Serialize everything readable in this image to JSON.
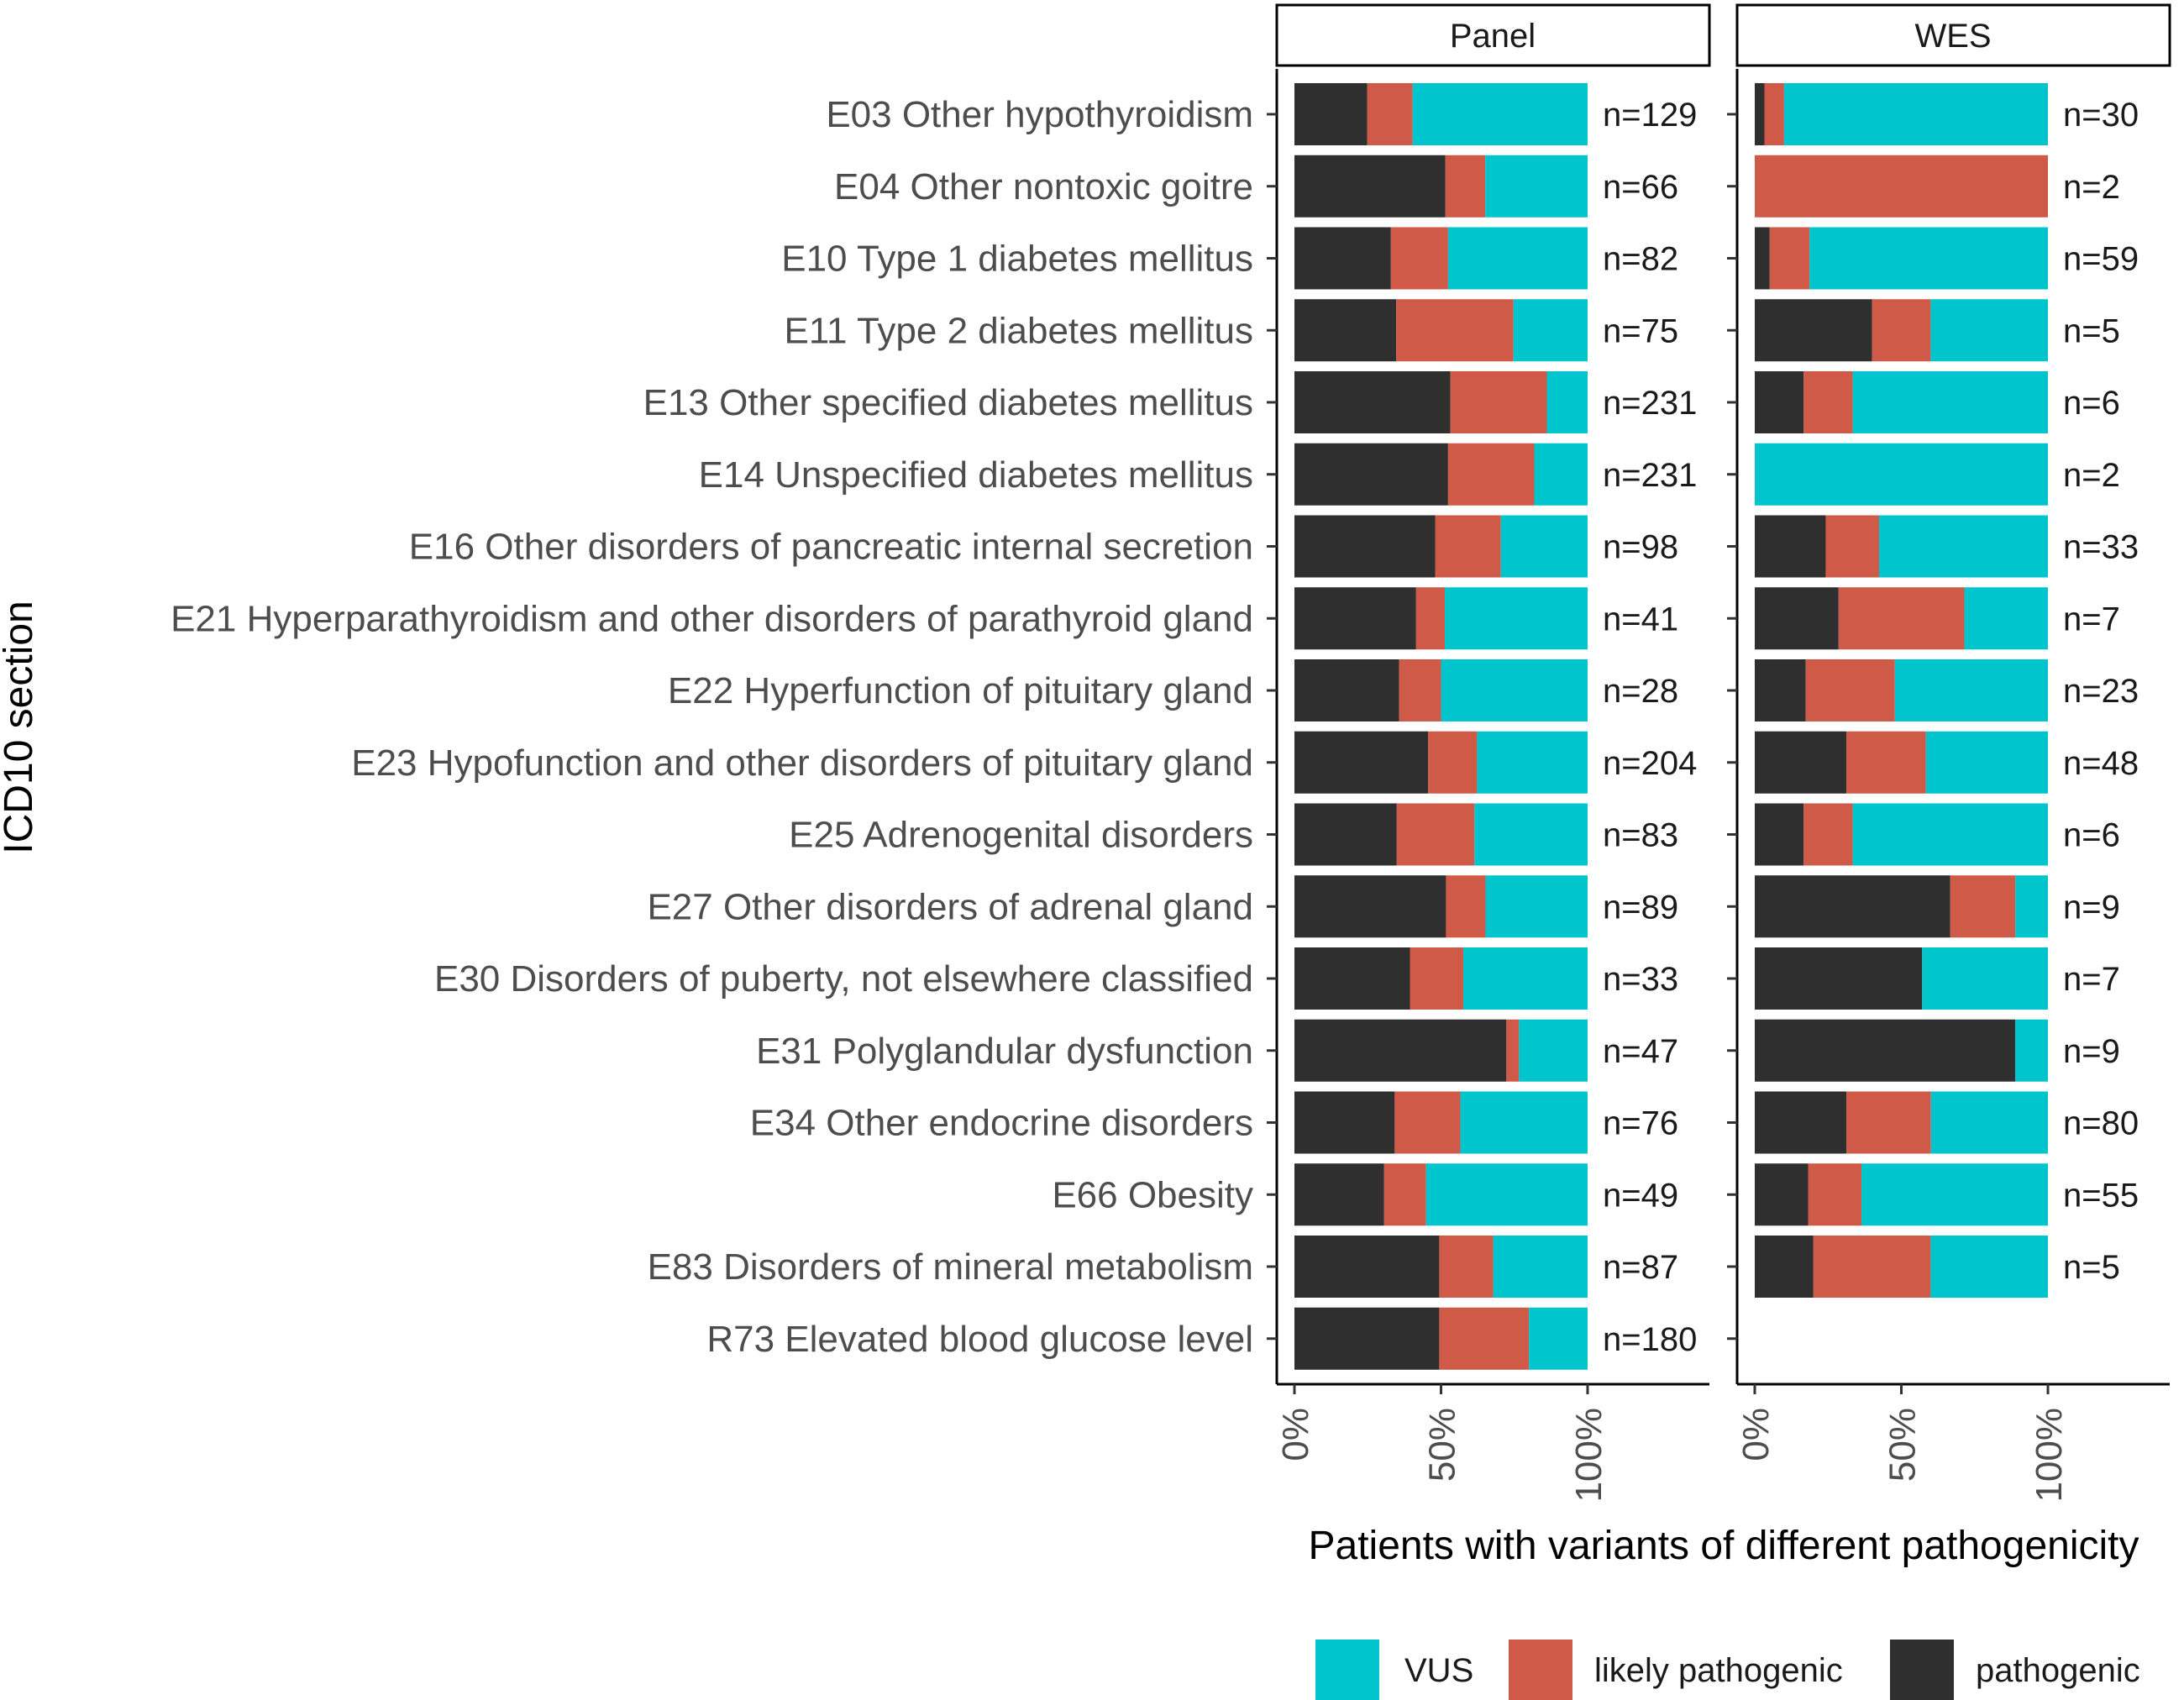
{
  "chart_data": {
    "type": "bar",
    "orientation": "horizontal",
    "stacked": "percent",
    "ylabel": "ICD10 section",
    "xlabel": "Patients with variants of different pathogenicity",
    "x_ticks": [
      "0%",
      "50%",
      "100%"
    ],
    "xlim": [
      0,
      100
    ],
    "facets": [
      "Panel",
      "WES"
    ],
    "categories": [
      "E03 Other hypothyroidism",
      "E04 Other nontoxic goitre",
      "E10 Type 1 diabetes mellitus",
      "E11 Type 2 diabetes mellitus",
      "E13 Other specified diabetes mellitus",
      "E14 Unspecified diabetes mellitus",
      "E16 Other disorders of pancreatic internal secretion",
      "E21 Hyperparathyroidism and other disorders of parathyroid gland",
      "E22 Hyperfunction of pituitary gland",
      "E23 Hypofunction and other disorders of pituitary gland",
      "E25 Adrenogenital disorders",
      "E27 Other disorders of adrenal gland",
      "E30 Disorders of puberty, not elsewhere classified",
      "E31 Polyglandular dysfunction",
      "E34 Other endocrine disorders",
      "E66 Obesity",
      "E83 Disorders of mineral metabolism",
      "R73 Elevated blood glucose level"
    ],
    "legend": {
      "position": "bottom-right",
      "entries": [
        {
          "key": "vus",
          "label": "VUS",
          "color": "#00C5CD"
        },
        {
          "key": "likely",
          "label": "likely pathogenic",
          "color": "#D05A48"
        },
        {
          "key": "pathogenic",
          "label": "pathogenic",
          "color": "#2F2F2F"
        }
      ]
    },
    "stack_order": [
      "pathogenic",
      "likely",
      "vus"
    ],
    "panels": [
      {
        "name": "Panel",
        "series": {
          "pathogenic": [
            24.8,
            51.5,
            32.9,
            34.7,
            53.2,
            52.4,
            48.0,
            41.5,
            35.7,
            45.6,
            34.9,
            51.7,
            39.4,
            72.3,
            34.2,
            30.6,
            49.4,
            49.4
          ],
          "likely": [
            15.5,
            13.6,
            19.5,
            40.0,
            32.9,
            29.4,
            22.4,
            9.8,
            14.3,
            16.7,
            26.5,
            13.5,
            18.2,
            4.3,
            22.4,
            14.3,
            18.4,
            30.6
          ],
          "vus": [
            59.7,
            34.9,
            47.6,
            25.3,
            13.9,
            18.2,
            29.6,
            48.7,
            50.0,
            37.7,
            38.6,
            34.8,
            42.4,
            23.4,
            43.4,
            55.1,
            32.2,
            20.0
          ]
        },
        "n_labels": [
          "n=129",
          "n=66",
          "n=82",
          "n=75",
          "n=231",
          "n=231",
          "n=98",
          "n=41",
          "n=28",
          "n=204",
          "n=83",
          "n=89",
          "n=33",
          "n=47",
          "n=76",
          "n=49",
          "n=87",
          "n=180"
        ]
      },
      {
        "name": "WES",
        "series": {
          "pathogenic": [
            3.3,
            0,
            5.1,
            40.0,
            16.7,
            0,
            24.2,
            28.6,
            17.4,
            31.3,
            16.7,
            66.7,
            57.1,
            88.9,
            31.3,
            18.2,
            20.0,
            null
          ],
          "likely": [
            6.7,
            100,
            13.6,
            20.0,
            16.7,
            0,
            18.2,
            42.9,
            30.4,
            27.1,
            16.7,
            22.2,
            0,
            0,
            28.8,
            18.2,
            40.0,
            null
          ],
          "vus": [
            90.0,
            0,
            81.3,
            40.0,
            66.6,
            100,
            57.6,
            28.5,
            52.2,
            41.6,
            66.6,
            11.1,
            42.9,
            11.1,
            39.9,
            63.6,
            40.0,
            null
          ]
        },
        "n_labels": [
          "n=30",
          "n=2",
          "n=59",
          "n=5",
          "n=6",
          "n=2",
          "n=33",
          "n=7",
          "n=23",
          "n=48",
          "n=6",
          "n=9",
          "n=7",
          "n=9",
          "n=80",
          "n=55",
          "n=5",
          ""
        ]
      }
    ]
  }
}
